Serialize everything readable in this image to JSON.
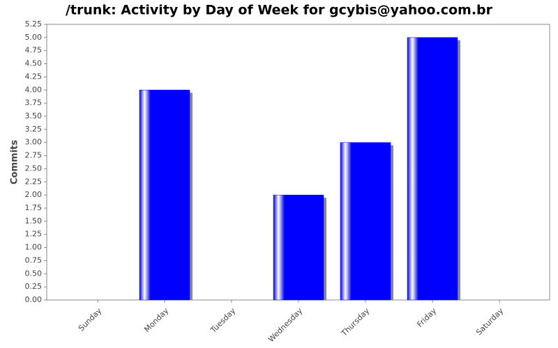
{
  "chart_data": {
    "type": "bar",
    "title": "/trunk: Activity by Day of Week for gcybis@yahoo.com.br",
    "y_label": "Commits",
    "categories": [
      "Sunday",
      "Monday",
      "Tuesday",
      "Wednesday",
      "Thursday",
      "Friday",
      "Saturday"
    ],
    "values": [
      0,
      4,
      0,
      2,
      3,
      5,
      0
    ],
    "color": "#0000ff",
    "ylim": [
      0,
      5.25
    ],
    "yticks": [
      {
        "value": 0,
        "label": "0.00"
      },
      0.25,
      {
        "value": 0.5,
        "label": "0.50"
      },
      0.75,
      {
        "value": 1,
        "label": "1.00"
      },
      1.25,
      {
        "value": 1.5,
        "label": "1.50"
      },
      1.75,
      {
        "value": 2,
        "label": "2.00"
      },
      2.25,
      {
        "value": 2.5,
        "label": "2.50"
      },
      2.75,
      {
        "value": 3,
        "label": "3.00"
      },
      3.25,
      {
        "value": 3.5,
        "label": "3.50"
      },
      3.75,
      {
        "value": 4,
        "label": "4.00"
      },
      4.25,
      {
        "value": 4.5,
        "label": "4.50"
      },
      4.75,
      {
        "value": 5,
        "label": "5.00"
      },
      5.25
    ],
    "grid": false
  }
}
